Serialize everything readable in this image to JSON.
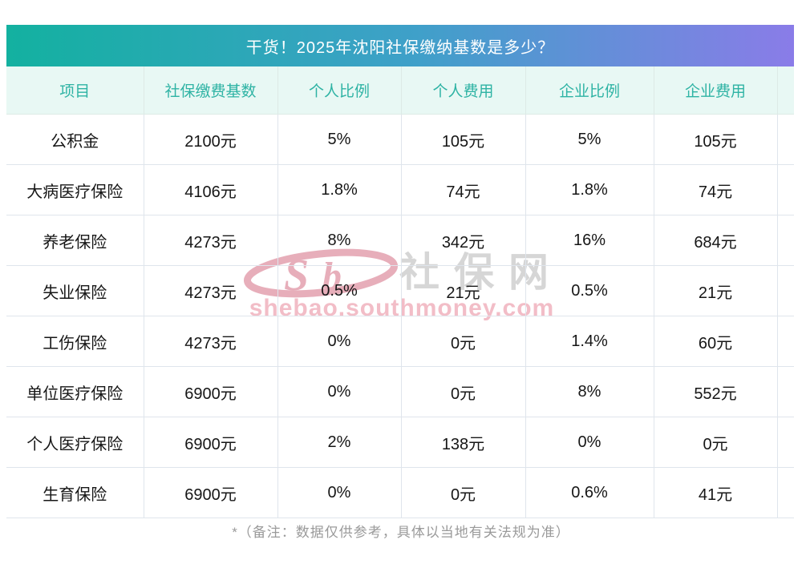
{
  "chart_data": {
    "type": "table",
    "title": "干货！2025年沈阳社保缴纳基数是多少？",
    "columns": [
      "项目",
      "社保缴费基数",
      "个人比例",
      "个人费用",
      "企业比例",
      "企业费用"
    ],
    "rows": [
      [
        "公积金",
        "2100元",
        "5%",
        "105元",
        "5%",
        "105元"
      ],
      [
        "大病医疗保险",
        "4106元",
        "1.8%",
        "74元",
        "1.8%",
        "74元"
      ],
      [
        "养老保险",
        "4273元",
        "8%",
        "342元",
        "16%",
        "684元"
      ],
      [
        "失业保险",
        "4273元",
        "0.5%",
        "21元",
        "0.5%",
        "21元"
      ],
      [
        "工伤保险",
        "4273元",
        "0%",
        "0元",
        "1.4%",
        "60元"
      ],
      [
        "单位医疗保险",
        "6900元",
        "0%",
        "0元",
        "8%",
        "552元"
      ],
      [
        "个人医疗保险",
        "6900元",
        "2%",
        "138元",
        "0%",
        "0元"
      ],
      [
        "生育保险",
        "6900元",
        "0%",
        "0元",
        "0.6%",
        "41元"
      ]
    ],
    "footnote": "*（备注：数据仅供参考，具体以当地有关法规为准）",
    "legend_position": "none",
    "grid": "on"
  },
  "watermark": {
    "logo_text": "Sb",
    "site_name": "社保网",
    "site_url": "shebao.southmoney.com"
  },
  "theme": {
    "gradient_start": "#13b1a0",
    "gradient_mid": "#3fa0c9",
    "gradient_end": "#8a7ce8",
    "header_bg": "#e8f8f4",
    "header_text": "#2eb3a4",
    "cell_text": "#161616",
    "border": "#dfe5ec",
    "footnote_text": "#9a9a9a",
    "watermark_pink": "#e7aeba",
    "watermark_url_pink": "#f2bdc7",
    "watermark_gray": "#d6d6d6"
  }
}
